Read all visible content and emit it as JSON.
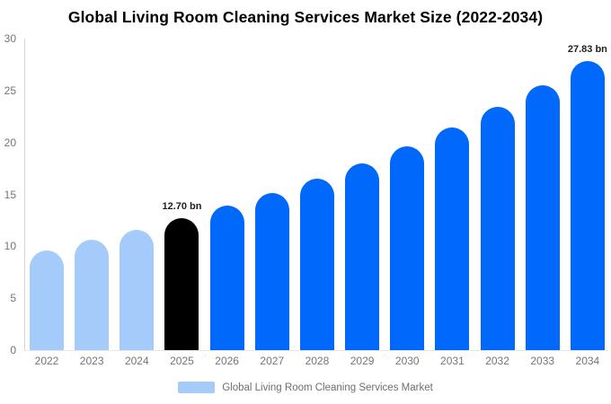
{
  "chart_data": {
    "type": "bar",
    "title": "Global Living Room Cleaning Services Market Size (2022-2034)",
    "categories": [
      "2022",
      "2023",
      "2024",
      "2025",
      "2026",
      "2027",
      "2028",
      "2029",
      "2030",
      "2031",
      "2032",
      "2033",
      "2034"
    ],
    "values": [
      9.6,
      10.6,
      11.6,
      12.7,
      13.9,
      15.1,
      16.5,
      18.0,
      19.6,
      21.4,
      23.4,
      25.5,
      27.83
    ],
    "unit": "bn",
    "annotations": [
      "",
      "",
      "",
      "12.70 bn",
      "",
      "",
      "",
      "",
      "",
      "",
      "",
      "",
      "27.83 bn"
    ],
    "bar_colors": [
      "#A4CBF9",
      "#A4CBF9",
      "#A4CBF9",
      "#000000",
      "#0069FB",
      "#0069FB",
      "#0069FB",
      "#0069FB",
      "#0069FB",
      "#0069FB",
      "#0069FB",
      "#0069FB",
      "#0069FB"
    ],
    "palette": {
      "historical": "#A4CBF9",
      "highlight": "#000000",
      "forecast": "#0069FB"
    },
    "xlabel": "",
    "ylabel": "",
    "ylim": [
      0,
      30
    ],
    "yticks": [
      0,
      5,
      10,
      15,
      20,
      25,
      30
    ],
    "grid": false,
    "legend_position": "bottom"
  },
  "legend": {
    "label": "Global Living Room Cleaning Services Market",
    "swatch_color": "#A4CBF9"
  },
  "axis_colors": {
    "tick_label": "#757575",
    "axis_line": "#d6d6d6"
  }
}
